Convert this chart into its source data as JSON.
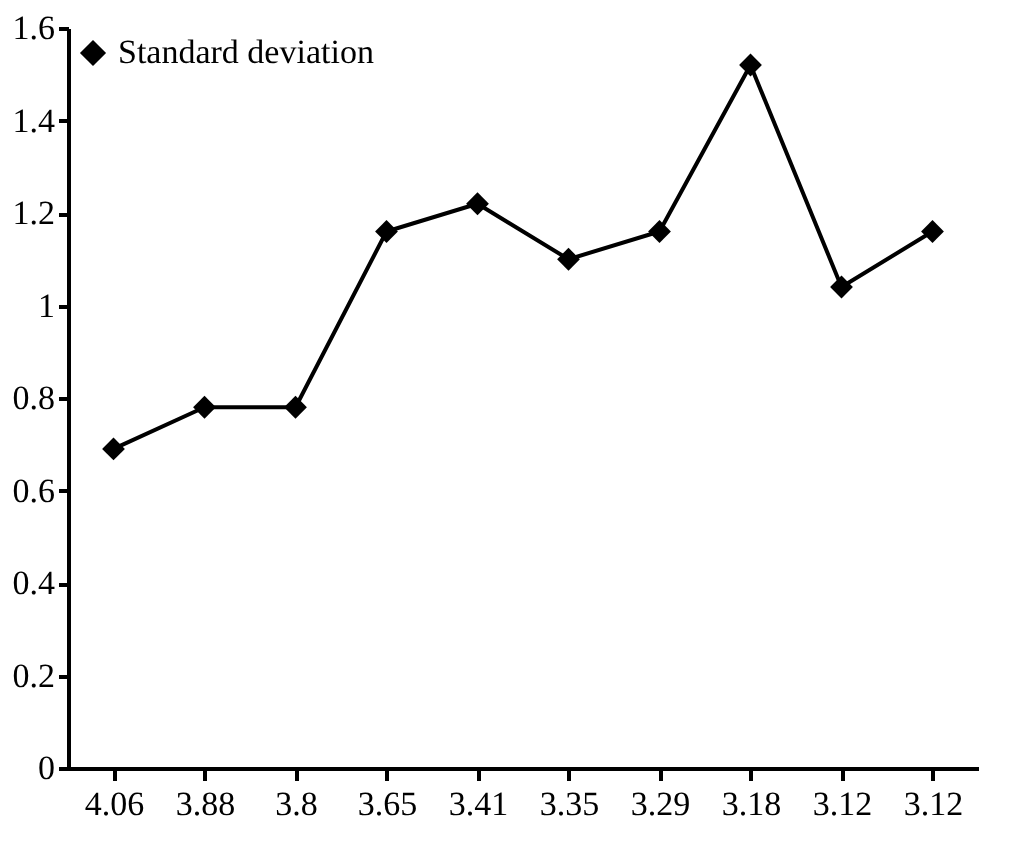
{
  "chart_data": {
    "type": "line",
    "categories": [
      "4.06",
      "3.88",
      "3.8",
      "3.65",
      "3.41",
      "3.35",
      "3.29",
      "3.18",
      "3.12",
      "3.12"
    ],
    "series": [
      {
        "name": "Standard deviation",
        "color": "#000000",
        "values": [
          0.69,
          0.78,
          0.78,
          1.16,
          1.22,
          1.1,
          1.16,
          1.52,
          1.04,
          1.16
        ]
      }
    ],
    "ylim": [
      0,
      1.6
    ],
    "yticks": [
      0,
      0.2,
      0.4,
      0.6,
      0.8,
      1,
      1.2,
      1.4,
      1.6
    ],
    "marker": "diamond",
    "line_style": "solid",
    "grid": false,
    "legend": "top left"
  }
}
